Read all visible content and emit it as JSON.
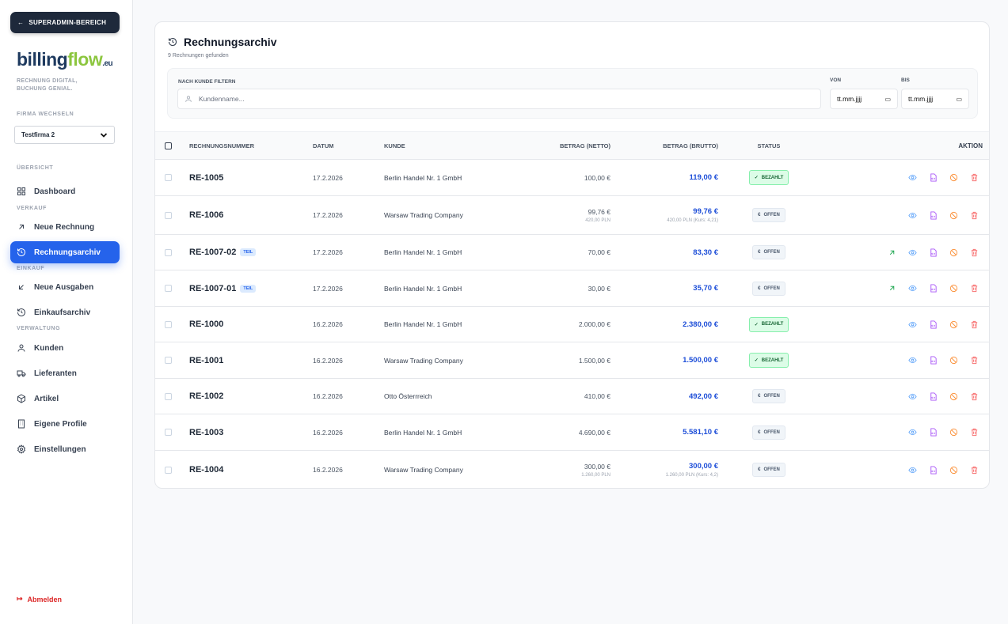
{
  "sidebar": {
    "superadmin_label": "SUPERADMIN-BEREICH",
    "logo": {
      "part1": "billing",
      "part2": "flow",
      "suffix": ".eu"
    },
    "tagline_line1": "RECHNUNG DIGITAL,",
    "tagline_line2": "BUCHUNG GENIAL.",
    "firma_label": "FIRMA WECHSELN",
    "firma_value": "Testfirma 2",
    "sections": {
      "overview": "ÜBERSICHT",
      "sales": "VERKAUF",
      "purchase": "EINKAUF",
      "admin": "VERWALTUNG"
    },
    "items": [
      {
        "label": "Dashboard",
        "icon": "grid-icon"
      },
      {
        "label": "Neue Rechnung",
        "icon": "arrow-up-right-icon"
      },
      {
        "label": "Rechnungsarchiv",
        "icon": "history-icon",
        "active": true
      },
      {
        "label": "Neue Ausgaben",
        "icon": "arrow-down-left-icon"
      },
      {
        "label": "Einkaufsarchiv",
        "icon": "history-icon"
      },
      {
        "label": "Kunden",
        "icon": "user-icon"
      },
      {
        "label": "Lieferanten",
        "icon": "truck-icon"
      },
      {
        "label": "Artikel",
        "icon": "box-icon"
      },
      {
        "label": "Eigene Profile",
        "icon": "building-icon"
      },
      {
        "label": "Einstellungen",
        "icon": "gear-icon"
      }
    ],
    "logout_label": "Abmelden"
  },
  "main": {
    "title": "Rechnungsarchiv",
    "subtitle": "9 Rechnungen gefunden",
    "filter": {
      "customer_label": "NACH KUNDE FILTERN",
      "customer_placeholder": "Kundenname...",
      "from_label": "VON",
      "to_label": "BIS",
      "date_placeholder": "tt.mm.jjjj"
    },
    "columns": [
      "RECHNUNGSNUMMER",
      "DATUM",
      "KUNDE",
      "BETRAG (NETTO)",
      "BETRAG (BRUTTO)",
      "STATUS",
      "AKTION"
    ],
    "colors": {
      "accent": "#2563eb",
      "paid": "#166534",
      "gross": "#1d4ed8"
    },
    "rows": [
      {
        "number": "RE-1005",
        "date": "17.2.2026",
        "customer": "Berlin Handel Nr. 1 GmbH",
        "net": "100,00 €",
        "gross": "119,00 €",
        "status": "BEZAHLT",
        "paid": true
      },
      {
        "number": "RE-1006",
        "date": "17.2.2026",
        "customer": "Warsaw Trading Company",
        "net": "99,76 €",
        "net_sub": "420,00 PLN",
        "gross": "99,76 €",
        "gross_sub": "420,00 PLN (Kurs: 4,21)",
        "status": "OFFEN"
      },
      {
        "number": "RE-1007-02",
        "tag": "TEIL",
        "date": "17.2.2026",
        "customer": "Berlin Handel Nr. 1 GmbH",
        "net": "70,00 €",
        "gross": "83,30 €",
        "status": "OFFEN",
        "link": true
      },
      {
        "number": "RE-1007-01",
        "tag": "TEIL",
        "date": "17.2.2026",
        "customer": "Berlin Handel Nr. 1 GmbH",
        "net": "30,00 €",
        "gross": "35,70 €",
        "status": "OFFEN",
        "link": true
      },
      {
        "number": "RE-1000",
        "date": "16.2.2026",
        "customer": "Berlin Handel Nr. 1 GmbH",
        "net": "2.000,00 €",
        "gross": "2.380,00 €",
        "status": "BEZAHLT",
        "paid": true
      },
      {
        "number": "RE-1001",
        "date": "16.2.2026",
        "customer": "Warsaw Trading Company",
        "net": "1.500,00 €",
        "gross": "1.500,00 €",
        "status": "BEZAHLT",
        "paid": true
      },
      {
        "number": "RE-1002",
        "date": "16.2.2026",
        "customer": "Otto Österrreich",
        "net": "410,00 €",
        "gross": "492,00 €",
        "status": "OFFEN"
      },
      {
        "number": "RE-1003",
        "date": "16.2.2026",
        "customer": "Berlin Handel Nr. 1 GmbH",
        "net": "4.690,00 €",
        "gross": "5.581,10 €",
        "status": "OFFEN"
      },
      {
        "number": "RE-1004",
        "date": "16.2.2026",
        "customer": "Warsaw Trading Company",
        "net": "300,00 €",
        "net_sub": "1.260,00 PLN",
        "gross": "300,00 €",
        "gross_sub": "1.260,00 PLN (Kurs: 4,2)",
        "status": "OFFEN"
      }
    ]
  }
}
